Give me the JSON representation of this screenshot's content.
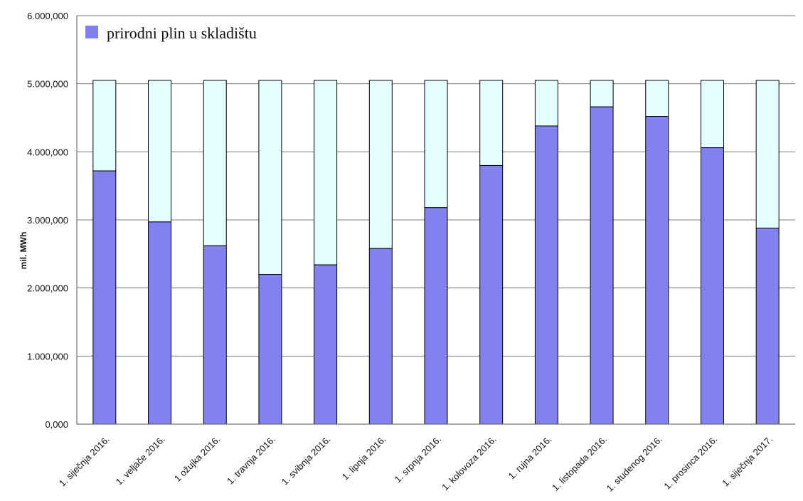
{
  "chart_data": {
    "type": "bar",
    "stacked": true,
    "ylabel": "mil. MWh",
    "ylim": [
      0,
      6000000
    ],
    "yticks": [
      "0,000",
      "1.000,000",
      "2.000,000",
      "3.000,000",
      "4.000,000",
      "5.000,000",
      "6.000,000"
    ],
    "categories": [
      "1. siječnja 2016.",
      "1. veljače 2016.",
      "1 ožujka 2016.",
      "1. travnja 2016.",
      "1. svibnja 2016.",
      "1. lipnja 2016.",
      "1. srpnja 2016.",
      "1. kolovoza 2016.",
      "1. rujna 2016.",
      "1. listopada 2016.",
      "1. studenog 2016.",
      "1. prosinca 2016.",
      "1. siječnja 2017."
    ],
    "total_capacity": 5050000,
    "series": [
      {
        "name": "prirodni plin u skladištu",
        "color": "#8080f0",
        "values": [
          3720000,
          2970000,
          2620000,
          2200000,
          2340000,
          2580000,
          3180000,
          3800000,
          4380000,
          4660000,
          4520000,
          4060000,
          2880000
        ]
      }
    ],
    "remaining_color": "#e4fdfe",
    "grid": true,
    "legend": "top-left"
  }
}
